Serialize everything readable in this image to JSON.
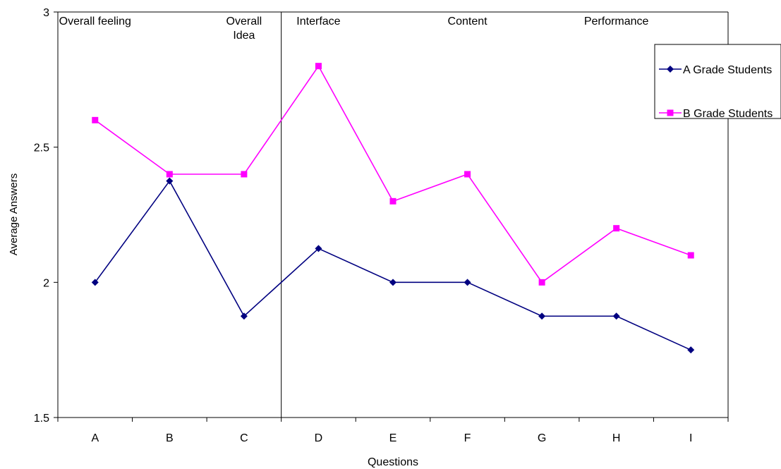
{
  "chart_data": {
    "type": "line",
    "categories": [
      "A",
      "B",
      "C",
      "D",
      "E",
      "F",
      "G",
      "H",
      "I"
    ],
    "series": [
      {
        "name": "A Grade Students",
        "color": "#000080",
        "marker": "diamond",
        "values": [
          2.0,
          2.375,
          1.875,
          2.125,
          2.0,
          2.0,
          1.875,
          1.875,
          1.75
        ]
      },
      {
        "name": "B Grade Students",
        "color": "#ff00ff",
        "marker": "square",
        "values": [
          2.6,
          2.4,
          2.4,
          2.8,
          2.3,
          2.4,
          2.0,
          2.2,
          2.1
        ]
      }
    ],
    "xlabel": "Questions",
    "ylabel": "Average Answers",
    "ylim": [
      1.5,
      3
    ],
    "yticks": [
      "1.5",
      "2",
      "2.5",
      "3"
    ],
    "grid": false,
    "legend_position": "right",
    "divider_after_category": "C",
    "section_labels": [
      {
        "text": "Overall feeling",
        "category": "A"
      },
      {
        "lines": [
          "Overall",
          "Idea"
        ],
        "category": "C"
      },
      {
        "text": "Interface",
        "category": "D"
      },
      {
        "text": "Content",
        "category": "F"
      },
      {
        "text": "Performance",
        "category": "H"
      }
    ]
  }
}
